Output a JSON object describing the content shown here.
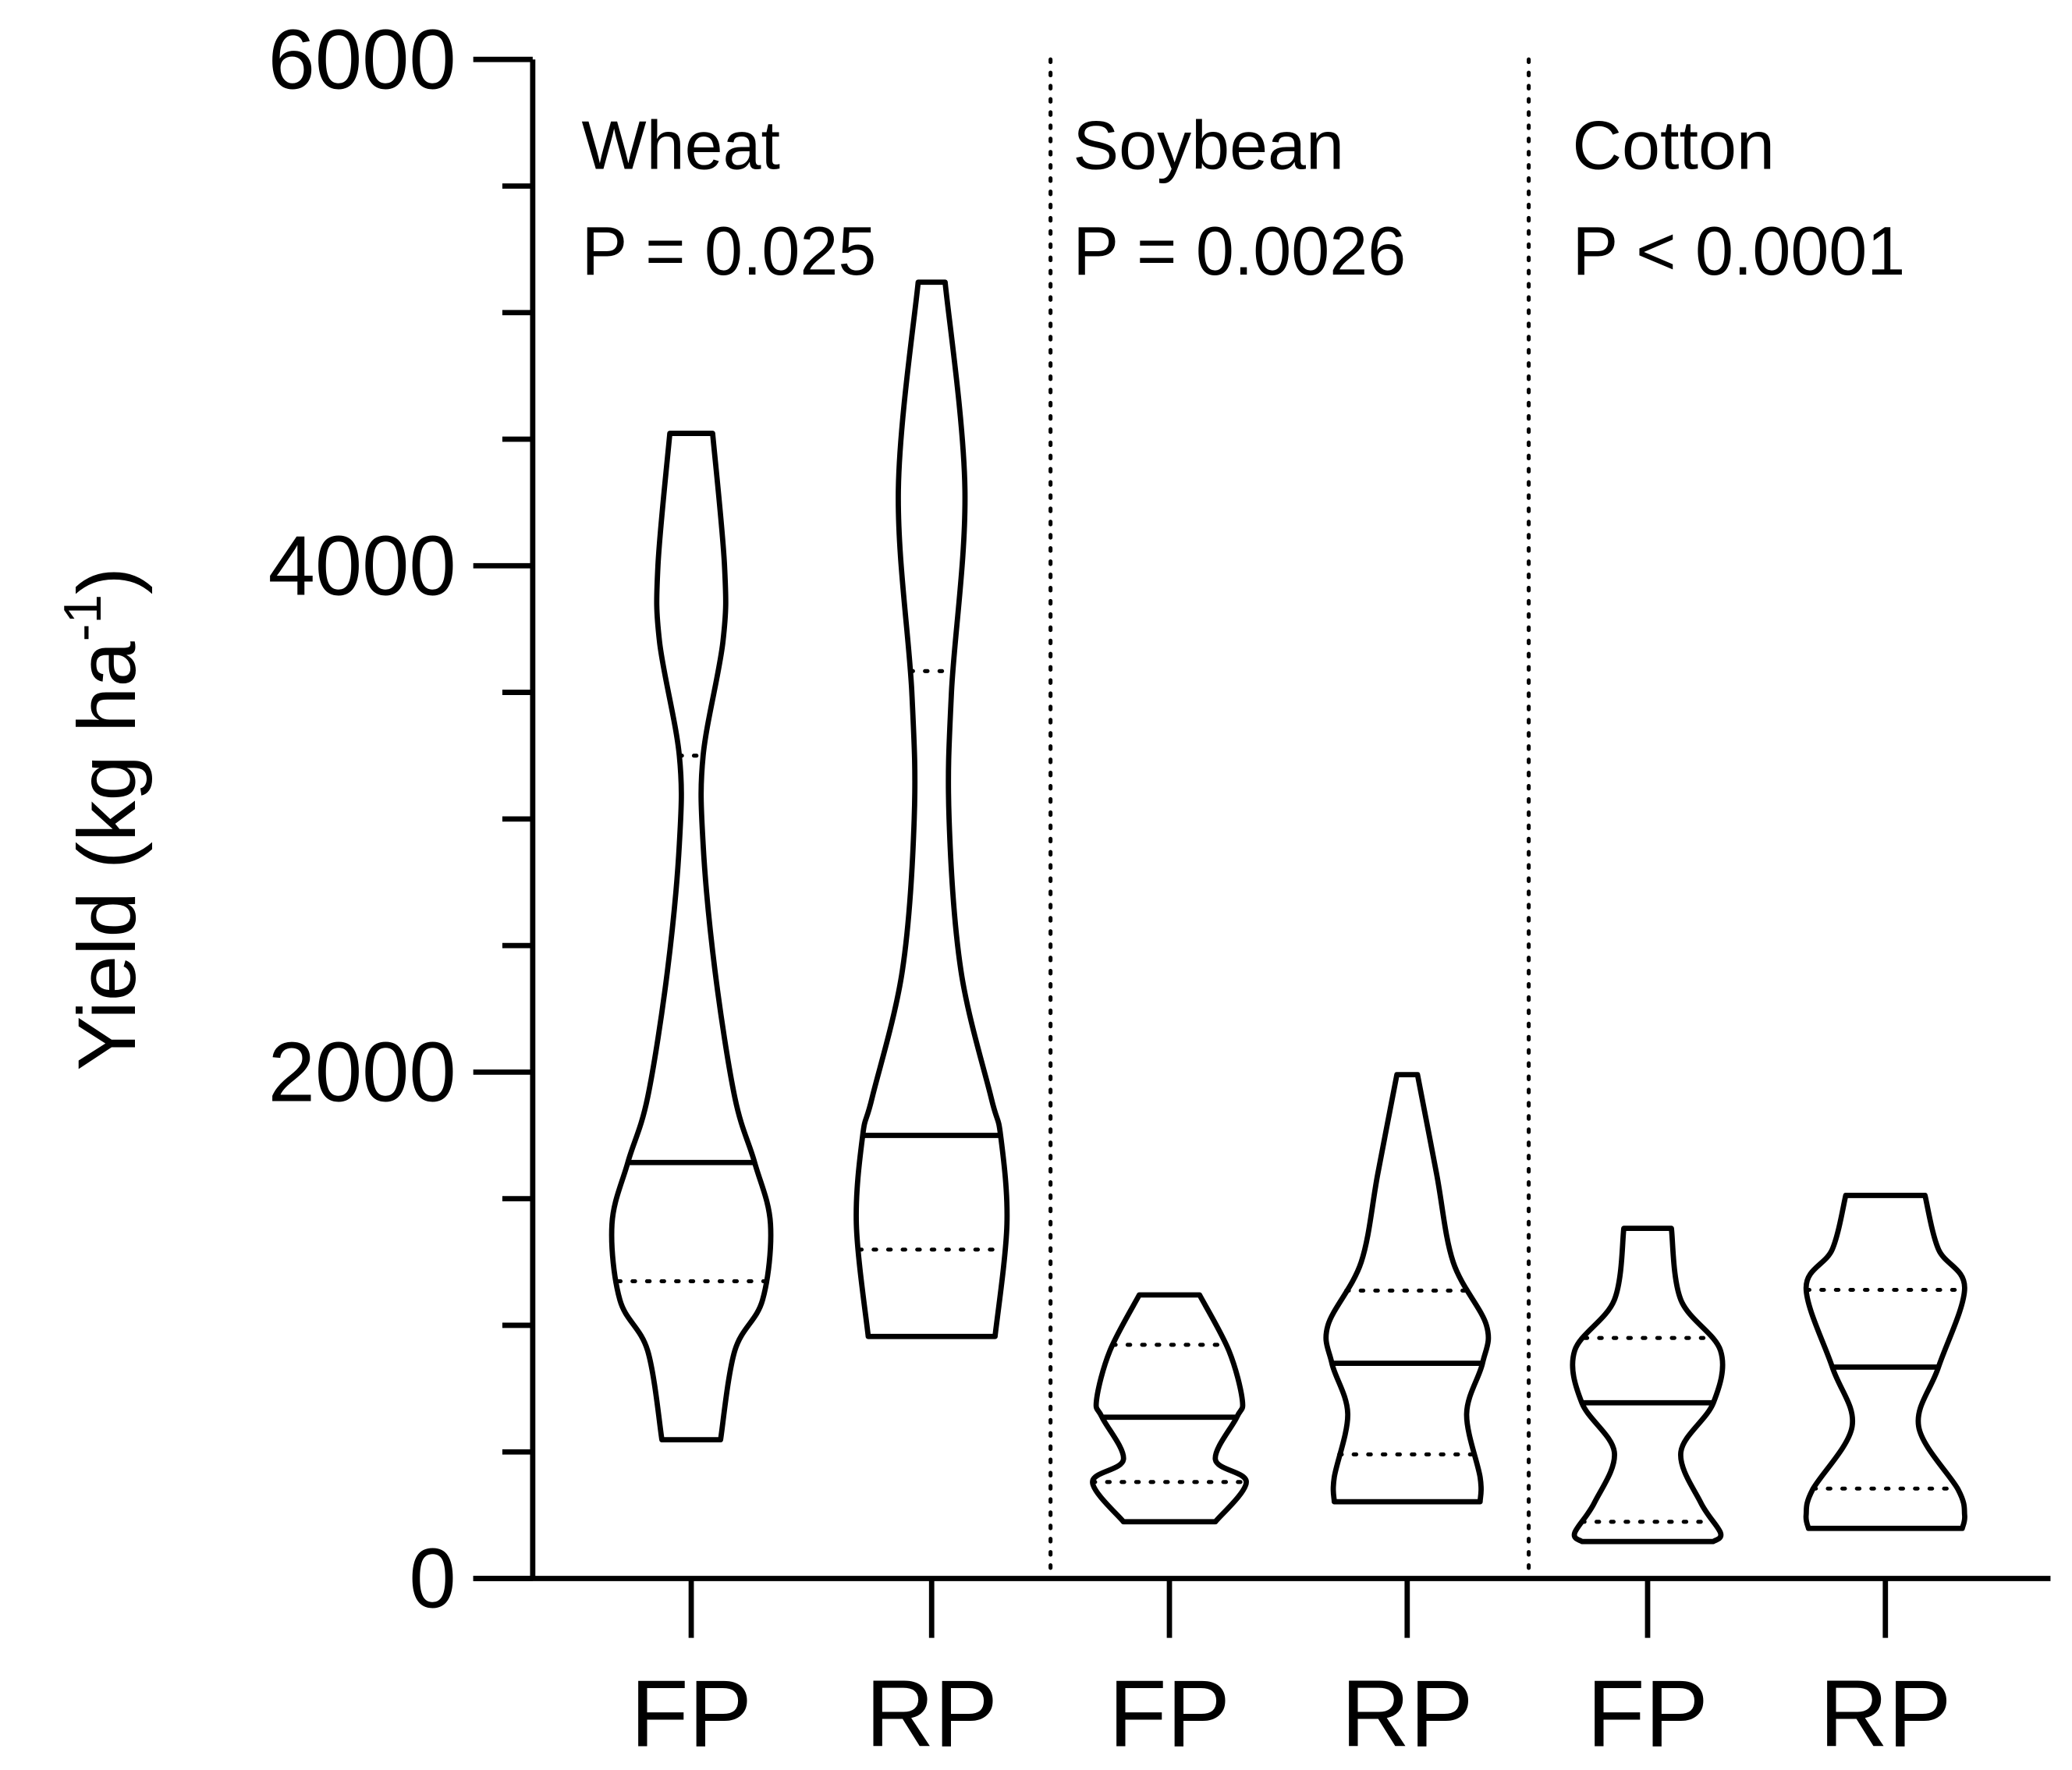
{
  "chart_data": {
    "type": "violin",
    "y_label": "Yield (kg ha",
    "y_label_sup": "-1",
    "y_label_end": ")",
    "ylim": [
      0,
      6000
    ],
    "yticks": [
      0,
      2000,
      4000,
      6000
    ],
    "minor_yticks": [
      500,
      1000,
      1500,
      2500,
      3000,
      3500,
      4500,
      5000,
      5500
    ],
    "categories": [
      "FP",
      "RP",
      "FP",
      "RP",
      "FP",
      "RP"
    ],
    "groups": [
      {
        "label": "Wheat",
        "annotation": "P = 0.025"
      },
      {
        "label": "Soybean",
        "annotation": "P = 0.0026"
      },
      {
        "label": "Cotton",
        "annotation": "P < 0.0001"
      }
    ],
    "color": "#000000",
    "violins": [
      {
        "min": 548,
        "q1": 1174,
        "median": 1643,
        "q3": 3250,
        "max": 4523,
        "density_y": [
          548,
          900,
          1100,
          1400,
          1643,
          1900,
          2400,
          2900,
          3250,
          3700,
          4000,
          4523
        ],
        "density": [
          0.37,
          0.55,
          0.9,
          1.0,
          0.8,
          0.55,
          0.3,
          0.15,
          0.15,
          0.4,
          0.42,
          0.27
        ]
      },
      {
        "min": 956,
        "q1": 1299,
        "median": 1750,
        "q3": 3584,
        "max": 5120,
        "density_y": [
          956,
          1400,
          1750,
          1900,
          2400,
          3000,
          3500,
          4300,
          5120
        ],
        "density": [
          0.8,
          0.95,
          0.87,
          0.75,
          0.37,
          0.22,
          0.25,
          0.42,
          0.17
        ]
      },
      {
        "min": 224,
        "q1": 381,
        "median": 637,
        "q3": 923,
        "max": 1120,
        "density_y": [
          224,
          381,
          470,
          637,
          704,
          900,
          1120
        ],
        "density": [
          0.58,
          0.97,
          0.58,
          0.85,
          0.92,
          0.75,
          0.38
        ]
      },
      {
        "min": 303,
        "q1": 490,
        "median": 850,
        "q3": 1137,
        "max": 1990,
        "density_y": [
          303,
          400,
          650,
          850,
          1000,
          1250,
          1600,
          1990
        ],
        "density": [
          0.92,
          0.92,
          0.75,
          0.95,
          1.0,
          0.58,
          0.37,
          0.13
        ]
      },
      {
        "min": 146,
        "q1": 224,
        "median": 694,
        "q3": 950,
        "max": 1383,
        "density_y": [
          146,
          180,
          300,
          500,
          694,
          900,
          1100,
          1383
        ],
        "density": [
          0.83,
          0.92,
          0.67,
          0.42,
          0.83,
          0.92,
          0.42,
          0.3
        ]
      },
      {
        "min": 198,
        "q1": 355,
        "median": 835,
        "q3": 1140,
        "max": 1513,
        "density_y": [
          198,
          250,
          350,
          600,
          835,
          1148,
          1300,
          1513
        ],
        "density": [
          0.97,
          1.0,
          0.92,
          0.42,
          0.67,
          1.0,
          0.67,
          0.5
        ]
      }
    ]
  }
}
